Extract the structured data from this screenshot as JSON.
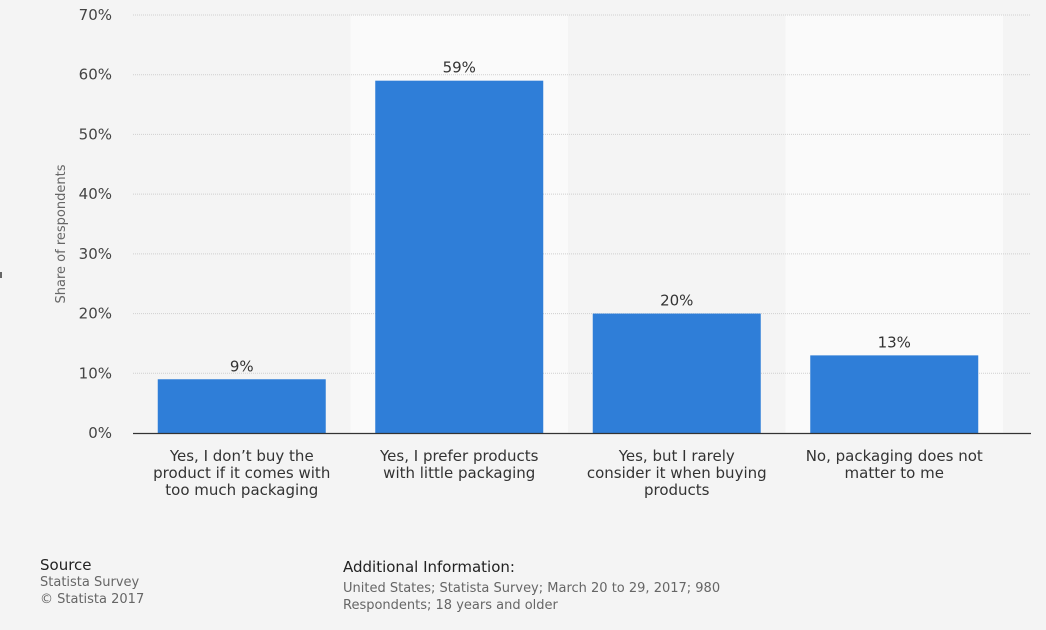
{
  "chart_data": {
    "type": "bar",
    "categories": [
      [
        "Yes, I don’t buy the",
        "product if it comes with",
        "too much packaging"
      ],
      [
        "Yes, I prefer products",
        "with little packaging"
      ],
      [
        "Yes, but I rarely",
        "consider it when buying",
        "products"
      ],
      [
        "No, packaging does not",
        "matter to me"
      ]
    ],
    "values": [
      9,
      59,
      20,
      13
    ],
    "value_labels": [
      "9%",
      "59%",
      "20%",
      "13%"
    ],
    "ylabel": "Share of respondents",
    "ylim": [
      0,
      70
    ],
    "yticks": [
      0,
      10,
      20,
      30,
      40,
      50,
      60,
      70
    ],
    "ytick_labels": [
      "0%",
      "10%",
      "20%",
      "30%",
      "40%",
      "50%",
      "60%",
      "70%"
    ],
    "bar_color": "#2f7ed8",
    "grid": true
  },
  "footer": {
    "source_heading": "Source",
    "source_line1": "Statista Survey",
    "source_line2": "© Statista 2017",
    "info_heading": "Additional Information:",
    "info_line1": "United States; Statista Survey; March 20 to 29, 2017; 980",
    "info_line2": "Respondents; 18 years and older"
  }
}
